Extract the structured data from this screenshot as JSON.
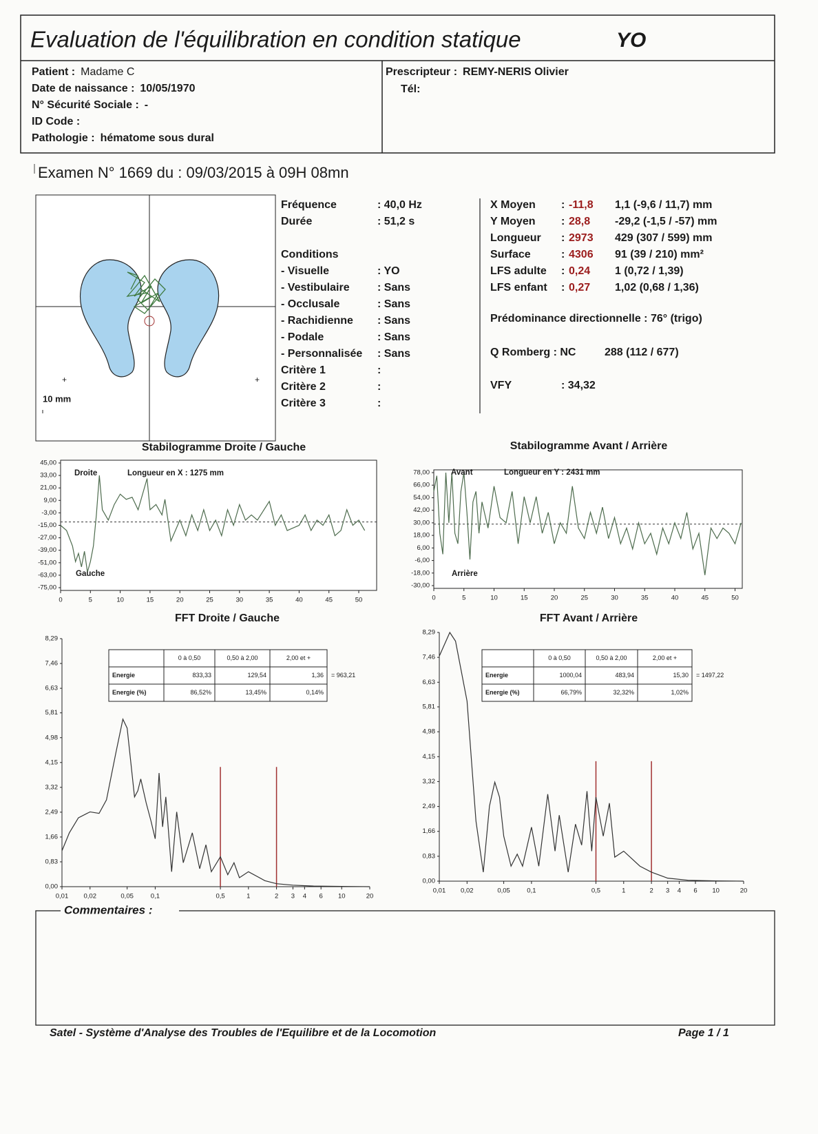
{
  "header": {
    "title": "Evaluation de l'équilibration en condition statique",
    "code": "YO"
  },
  "patient": {
    "fields": [
      [
        "Patient :",
        "Madame C"
      ],
      [
        "Date de naissance :",
        "10/05/1970"
      ],
      [
        "N° Sécurité Sociale :",
        "-"
      ],
      [
        "ID Code :"
      ],
      [
        "Pathologie :",
        "hématome sous dural"
      ]
    ]
  },
  "prescripteur": {
    "label": "Prescripteur :",
    "name": "REMY-NERIS Olivier",
    "tel": "Tél:"
  },
  "exam": "Examen N° 1669 du : 09/03/2015 à 09H 08mn",
  "posture": {
    "scale": "10 mm"
  },
  "acquisition": {
    "rows": [
      [
        "Fréquence",
        ": 40,0 Hz"
      ],
      [
        "Durée",
        ": 51,2 s"
      ]
    ],
    "conditions_title": "Conditions",
    "conditions": [
      [
        "- Visuelle",
        ": YO"
      ],
      [
        "- Vestibulaire",
        ": Sans"
      ],
      [
        "- Occlusale",
        ": Sans"
      ],
      [
        "- Rachidienne",
        ": Sans"
      ],
      [
        "- Podale",
        ": Sans"
      ],
      [
        "- Personnalisée",
        ": Sans"
      ]
    ],
    "criteria": [
      [
        "Critère 1",
        ":"
      ],
      [
        "Critère 2",
        ":"
      ],
      [
        "Critère 3",
        ":"
      ]
    ]
  },
  "results": {
    "sep": ":",
    "rows": [
      [
        "X Moyen",
        "-11,8",
        "1,1 (-9,6 / 11,7) mm"
      ],
      [
        "Y Moyen",
        "28,8",
        "-29,2 (-1,5 / -57) mm"
      ],
      [
        "Longueur",
        "2973",
        "429 (307 / 599) mm"
      ],
      [
        "Surface",
        "4306",
        "91 (39 / 210) mm²"
      ],
      [
        "LFS adulte",
        "0,24",
        "1 (0,72 / 1,39)"
      ],
      [
        "LFS enfant",
        "0,27",
        "1,02 (0,68 / 1,36)"
      ]
    ],
    "predominance": "Prédominance directionnelle : 76° (trigo)",
    "romberg": {
      "label": "Q Romberg : NC",
      "norm": "288 (112 / 677)"
    },
    "vfy": {
      "label": "VFY",
      "value": ": 34,32"
    }
  },
  "chart_data": [
    {
      "type": "line",
      "title": "Stabilogramme Droite / Gauche",
      "annotations": [
        "Droite",
        "Longueur en X : 1275 mm",
        "Gauche"
      ],
      "color": "#4d6b4d",
      "mean_line": -11.8,
      "xlim": [
        0,
        53
      ],
      "xticks": [
        0,
        5,
        10,
        15,
        20,
        25,
        30,
        35,
        40,
        45,
        50
      ],
      "ylim": [
        -75,
        45
      ],
      "yticks": [
        {
          "value": 45,
          "label": "45,00"
        },
        {
          "value": 33,
          "label": "33,00"
        },
        {
          "value": 21,
          "label": "21,00"
        },
        {
          "value": 9,
          "label": "9,00"
        },
        {
          "value": -3,
          "label": "-3,00"
        },
        {
          "value": -15,
          "label": "-15,00"
        },
        {
          "value": -27,
          "label": "-27,00"
        },
        {
          "value": -39,
          "label": "-39,00"
        },
        {
          "value": -51,
          "label": "-51,00"
        },
        {
          "value": -63,
          "label": "-63,00"
        },
        {
          "value": -75,
          "label": "-75,00"
        }
      ],
      "x": [
        0,
        1,
        2,
        2.5,
        3,
        3.5,
        4,
        4.5,
        5,
        5.5,
        6,
        6.5,
        7,
        8,
        9,
        10,
        11,
        12,
        13,
        14.5,
        15,
        16,
        17,
        17.5,
        18.5,
        20,
        21,
        22,
        23,
        24,
        25,
        26,
        27,
        28,
        29,
        30,
        31,
        32,
        33,
        35,
        36,
        37,
        38,
        40,
        41,
        42,
        43,
        44,
        45,
        46,
        47,
        48,
        49,
        50,
        51
      ],
      "values": [
        -15,
        -20,
        -35,
        -50,
        -42,
        -55,
        -40,
        -60,
        -50,
        -35,
        -5,
        33,
        0,
        -10,
        5,
        15,
        10,
        12,
        0,
        30,
        0,
        5,
        -5,
        10,
        -30,
        -10,
        -25,
        -5,
        -20,
        0,
        -20,
        -10,
        -25,
        0,
        -15,
        5,
        -10,
        -5,
        -10,
        8,
        -15,
        -5,
        -20,
        -15,
        -5,
        -20,
        -10,
        -15,
        -5,
        -25,
        -20,
        0,
        -15,
        -10,
        -20
      ]
    },
    {
      "type": "line",
      "title": "Stabilogramme Avant / Arrière",
      "annotations": [
        "Avant",
        "Longueur en Y : 2431 mm",
        "Arrière"
      ],
      "color": "#4d6b4d",
      "mean_line": 28.8,
      "xlim": [
        0,
        51.2
      ],
      "xticks": [
        0,
        5,
        10,
        15,
        20,
        25,
        30,
        35,
        40,
        45,
        50
      ],
      "ylim": [
        -30,
        78
      ],
      "yticks": [
        {
          "value": 78,
          "label": "78,00"
        },
        {
          "value": 66,
          "label": "66,00"
        },
        {
          "value": 54,
          "label": "54,00"
        },
        {
          "value": 42,
          "label": "42,00"
        },
        {
          "value": 30,
          "label": "30,00"
        },
        {
          "value": 18,
          "label": "18,00"
        },
        {
          "value": 6,
          "label": "6,00"
        },
        {
          "value": -6,
          "label": "-6,00"
        },
        {
          "value": -18,
          "label": "-18,00"
        },
        {
          "value": -30,
          "label": "-30,00"
        }
      ],
      "x": [
        0,
        0.5,
        1,
        1.5,
        2,
        2.5,
        3,
        3.5,
        4,
        4.5,
        5,
        5.5,
        6,
        6.5,
        7,
        7.5,
        8,
        9,
        10,
        11,
        12,
        13,
        14,
        15,
        16,
        17,
        18,
        19,
        20,
        21,
        22,
        23,
        24,
        25,
        26,
        27,
        28,
        29,
        30,
        31,
        32,
        33,
        34,
        35,
        36,
        37,
        38,
        39,
        40,
        41,
        42,
        43,
        44,
        45,
        46,
        47,
        48,
        49,
        50,
        51
      ],
      "values": [
        60,
        75,
        20,
        0,
        78,
        30,
        78,
        20,
        10,
        60,
        78,
        40,
        -5,
        50,
        60,
        20,
        50,
        25,
        65,
        35,
        30,
        60,
        10,
        55,
        30,
        55,
        20,
        40,
        10,
        30,
        20,
        65,
        25,
        15,
        40,
        20,
        45,
        15,
        35,
        10,
        25,
        5,
        30,
        10,
        20,
        0,
        25,
        10,
        30,
        15,
        40,
        5,
        20,
        -20,
        25,
        15,
        25,
        20,
        10,
        30
      ]
    },
    {
      "type": "line",
      "title": "FFT Droite / Gauche",
      "color": "#333333",
      "log_x": true,
      "markers": [
        0.5,
        2
      ],
      "marker_height": 4.0,
      "xlim": [
        0.01,
        20
      ],
      "xticks": [
        {
          "value": 0.01,
          "label": "0,01"
        },
        {
          "value": 0.02,
          "label": "0,02"
        },
        {
          "value": 0.05,
          "label": "0,05"
        },
        {
          "value": 0.1,
          "label": "0,1"
        },
        {
          "value": 0.5,
          "label": "0,5"
        },
        1,
        2,
        3,
        4,
        6,
        10,
        20
      ],
      "ylim": [
        0,
        8.29
      ],
      "yticks": [
        {
          "value": 0,
          "label": "0,00"
        },
        {
          "value": 0.83,
          "label": "0,83"
        },
        {
          "value": 1.66,
          "label": "1,66"
        },
        {
          "value": 2.49,
          "label": "2,49"
        },
        {
          "value": 3.32,
          "label": "3,32"
        },
        {
          "value": 4.15,
          "label": "4,15"
        },
        {
          "value": 4.98,
          "label": "4,98"
        },
        {
          "value": 5.81,
          "label": "5,81"
        },
        {
          "value": 6.63,
          "label": "6,63"
        },
        {
          "value": 7.46,
          "label": "7,46"
        },
        {
          "value": 8.29,
          "label": "8,29"
        }
      ],
      "x": [
        0.01,
        0.012,
        0.015,
        0.02,
        0.025,
        0.03,
        0.038,
        0.045,
        0.05,
        0.06,
        0.065,
        0.07,
        0.08,
        0.09,
        0.1,
        0.11,
        0.12,
        0.13,
        0.15,
        0.17,
        0.2,
        0.25,
        0.3,
        0.35,
        0.4,
        0.5,
        0.6,
        0.7,
        0.8,
        1,
        1.5,
        2,
        3,
        5,
        10,
        20
      ],
      "values": [
        1.2,
        1.8,
        2.3,
        2.5,
        2.45,
        2.9,
        4.5,
        5.6,
        5.3,
        3.0,
        3.2,
        3.6,
        2.8,
        2.2,
        1.6,
        3.8,
        2.0,
        3.0,
        0.5,
        2.5,
        0.8,
        1.8,
        0.6,
        1.4,
        0.5,
        1.0,
        0.4,
        0.8,
        0.3,
        0.5,
        0.2,
        0.1,
        0.05,
        0.02,
        0.01,
        0
      ],
      "table": {
        "header": [
          "0 à 0,50",
          "0,50 à 2,00",
          "2,00 et +"
        ],
        "rows": [
          [
            "Energie",
            "833,33",
            "129,54",
            "1,36"
          ],
          [
            "Energie (%)",
            "86,52%",
            "13,45%",
            "0,14%"
          ]
        ],
        "total": "= 963,21"
      }
    },
    {
      "type": "line",
      "title": "FFT Avant / Arrière",
      "color": "#333333",
      "log_x": true,
      "markers": [
        0.5,
        2
      ],
      "marker_height": 4.0,
      "xlim": [
        0.01,
        20
      ],
      "xticks": [
        {
          "value": 0.01,
          "label": "0,01"
        },
        {
          "value": 0.02,
          "label": "0,02"
        },
        {
          "value": 0.05,
          "label": "0,05"
        },
        {
          "value": 0.1,
          "label": "0,1"
        },
        {
          "value": 0.5,
          "label": "0,5"
        },
        1,
        2,
        3,
        4,
        6,
        10,
        20
      ],
      "ylim": [
        0,
        8.29
      ],
      "yticks": [
        {
          "value": 0,
          "label": "0,00"
        },
        {
          "value": 0.83,
          "label": "0,83"
        },
        {
          "value": 1.66,
          "label": "1,66"
        },
        {
          "value": 2.49,
          "label": "2,49"
        },
        {
          "value": 3.32,
          "label": "3,32"
        },
        {
          "value": 4.15,
          "label": "4,15"
        },
        {
          "value": 4.98,
          "label": "4,98"
        },
        {
          "value": 5.81,
          "label": "5,81"
        },
        {
          "value": 6.63,
          "label": "6,63"
        },
        {
          "value": 7.46,
          "label": "7,46"
        },
        {
          "value": 8.29,
          "label": "8,29"
        }
      ],
      "x": [
        0.01,
        0.013,
        0.015,
        0.02,
        0.025,
        0.03,
        0.035,
        0.04,
        0.045,
        0.05,
        0.06,
        0.07,
        0.08,
        0.1,
        0.12,
        0.15,
        0.18,
        0.2,
        0.25,
        0.3,
        0.35,
        0.4,
        0.45,
        0.5,
        0.6,
        0.7,
        0.8,
        1,
        1.5,
        2,
        3,
        5,
        10,
        20
      ],
      "values": [
        7.5,
        8.29,
        8.0,
        6.0,
        2.0,
        0.3,
        2.5,
        3.3,
        2.8,
        1.5,
        0.5,
        0.9,
        0.5,
        1.8,
        0.5,
        2.9,
        1.0,
        2.2,
        0.3,
        1.9,
        1.2,
        3.0,
        1.0,
        2.8,
        1.5,
        2.6,
        0.8,
        1.0,
        0.5,
        0.3,
        0.1,
        0.03,
        0.01,
        0
      ],
      "table": {
        "header": [
          "0 à 0,50",
          "0,50 à 2,00",
          "2,00 et +"
        ],
        "rows": [
          [
            "Energie",
            "1000,04",
            "483,94",
            "15,30"
          ],
          [
            "Energie (%)",
            "66,79%",
            "32,32%",
            "1,02%"
          ]
        ],
        "total": "= 1497,22"
      }
    }
  ],
  "comments": "Commentaires :",
  "footer": {
    "text": "Satel - Système d'Analyse des Troubles de l'Equilibre et de la Locomotion",
    "page": "Page 1 / 1"
  }
}
